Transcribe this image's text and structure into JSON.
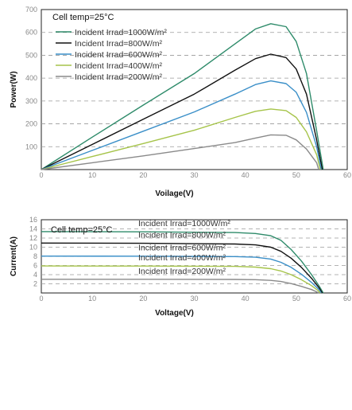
{
  "chart_data": [
    {
      "type": "line",
      "annotation": "Cell temp=25°C",
      "xlabel": "Voilage(V)",
      "ylabel": "Power(W)",
      "xlim": [
        0,
        60
      ],
      "ylim": [
        0,
        700
      ],
      "xticks": [
        0,
        10,
        20,
        30,
        40,
        50,
        60
      ],
      "yticks": [
        100,
        200,
        300,
        400,
        500,
        600,
        700
      ],
      "grid": "horizontal dashed",
      "legend_position": "top-left",
      "series": [
        {
          "name": "Incident Irrad=1000W/m²",
          "color": "#2e8b6a",
          "x": [
            0,
            10,
            20,
            30,
            38,
            42,
            45,
            48,
            50,
            52,
            54,
            55.3
          ],
          "y": [
            0,
            142,
            282,
            420,
            550,
            615,
            638,
            625,
            560,
            420,
            170,
            0
          ]
        },
        {
          "name": "Incident Irrad=800W/m²",
          "color": "#111111",
          "x": [
            0,
            10,
            20,
            30,
            38,
            42,
            45,
            48,
            50,
            52,
            54,
            55.1
          ],
          "y": [
            0,
            110,
            220,
            330,
            435,
            485,
            505,
            490,
            440,
            330,
            130,
            0
          ]
        },
        {
          "name": "Incident Irrad=600W/m²",
          "color": "#3a8fc8",
          "x": [
            0,
            10,
            20,
            30,
            38,
            42,
            45,
            48,
            50,
            52,
            54,
            54.9
          ],
          "y": [
            0,
            84,
            168,
            252,
            330,
            372,
            388,
            376,
            338,
            250,
            100,
            0
          ]
        },
        {
          "name": "Incident Irrad=400W/m²",
          "color": "#a6c44a",
          "x": [
            0,
            10,
            20,
            30,
            38,
            42,
            45,
            48,
            50,
            52,
            54,
            54.7
          ],
          "y": [
            0,
            57,
            114,
            172,
            228,
            255,
            265,
            258,
            228,
            165,
            65,
            0
          ]
        },
        {
          "name": "Incident Irrad=200W/m²",
          "color": "#8a8a8a",
          "x": [
            0,
            10,
            20,
            30,
            38,
            42,
            45,
            48,
            50,
            52,
            54,
            54.4
          ],
          "y": [
            0,
            30,
            60,
            92,
            118,
            138,
            152,
            150,
            130,
            90,
            30,
            0
          ]
        }
      ]
    },
    {
      "type": "line",
      "annotation": "Cell temp=25°C",
      "xlabel": "Voltage(V)",
      "ylabel": "Current(A)",
      "xlim": [
        0,
        60
      ],
      "ylim": [
        0,
        16
      ],
      "xticks": [
        0,
        10,
        20,
        30,
        40,
        50,
        60
      ],
      "yticks": [
        2,
        4,
        6,
        8,
        10,
        12,
        14,
        16
      ],
      "grid": "horizontal dashed",
      "legend_position": "inline labels above curves",
      "series": [
        {
          "name": "Incident Irrad=1000W/m²",
          "color": "#2e8b6a",
          "x": [
            0,
            20,
            38,
            42,
            45,
            47,
            49,
            51,
            53,
            54.5,
            55.3
          ],
          "y": [
            13.4,
            13.35,
            13.2,
            13.0,
            12.5,
            11.5,
            9.5,
            7.0,
            4.0,
            1.5,
            0
          ]
        },
        {
          "name": "Incident Irrad=800W/m²",
          "color": "#111111",
          "x": [
            0,
            20,
            38,
            42,
            45,
            47,
            49,
            51,
            53,
            54.5,
            55.1
          ],
          "y": [
            10.9,
            10.85,
            10.7,
            10.5,
            10.0,
            9.1,
            7.6,
            5.6,
            3.2,
            1.1,
            0
          ]
        },
        {
          "name": "Incident Irrad=600W/m²",
          "color": "#3a8fc8",
          "x": [
            0,
            20,
            38,
            42,
            45,
            47,
            49,
            51,
            53,
            54.5,
            54.9
          ],
          "y": [
            8.05,
            8.03,
            7.95,
            7.8,
            7.4,
            6.7,
            5.6,
            4.1,
            2.3,
            0.7,
            0
          ]
        },
        {
          "name": "Incident Irrad=400W/m²",
          "color": "#a6c44a",
          "x": [
            0,
            20,
            38,
            42,
            45,
            47,
            49,
            51,
            53,
            54.3,
            54.7
          ],
          "y": [
            5.9,
            5.88,
            5.8,
            5.65,
            5.3,
            4.8,
            4.0,
            2.9,
            1.6,
            0.5,
            0
          ]
        },
        {
          "name": "Incident Irrad=200W/m²",
          "color": "#8a8a8a",
          "x": [
            0,
            20,
            38,
            42,
            45,
            47,
            49,
            51,
            53,
            54.0,
            54.4
          ],
          "y": [
            3.0,
            3.0,
            2.95,
            2.9,
            2.75,
            2.5,
            2.05,
            1.45,
            0.75,
            0.25,
            0
          ]
        }
      ]
    }
  ]
}
